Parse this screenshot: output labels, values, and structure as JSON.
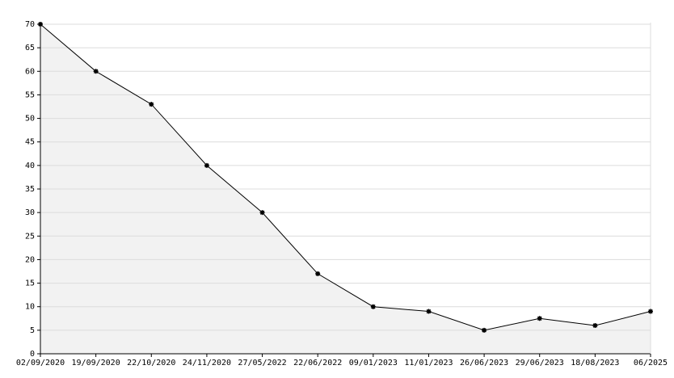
{
  "chart_data": {
    "type": "area",
    "categories": [
      "02/09/2020",
      "19/09/2020",
      "22/10/2020",
      "24/11/2020",
      "27/05/2022",
      "22/06/2022",
      "09/01/2023",
      "11/01/2023",
      "26/06/2023",
      "29/06/2023",
      "18/08/2023",
      "06/2025"
    ],
    "values": [
      70,
      60,
      53,
      40,
      30,
      17,
      10,
      9,
      5,
      7.5,
      6,
      9
    ],
    "color": "#000000",
    "fill": "#f2f2f2",
    "ylim": [
      0,
      70
    ],
    "yticks": [
      0,
      5,
      10,
      15,
      20,
      25,
      30,
      35,
      40,
      45,
      50,
      55,
      60,
      65,
      70
    ],
    "grid": true
  }
}
